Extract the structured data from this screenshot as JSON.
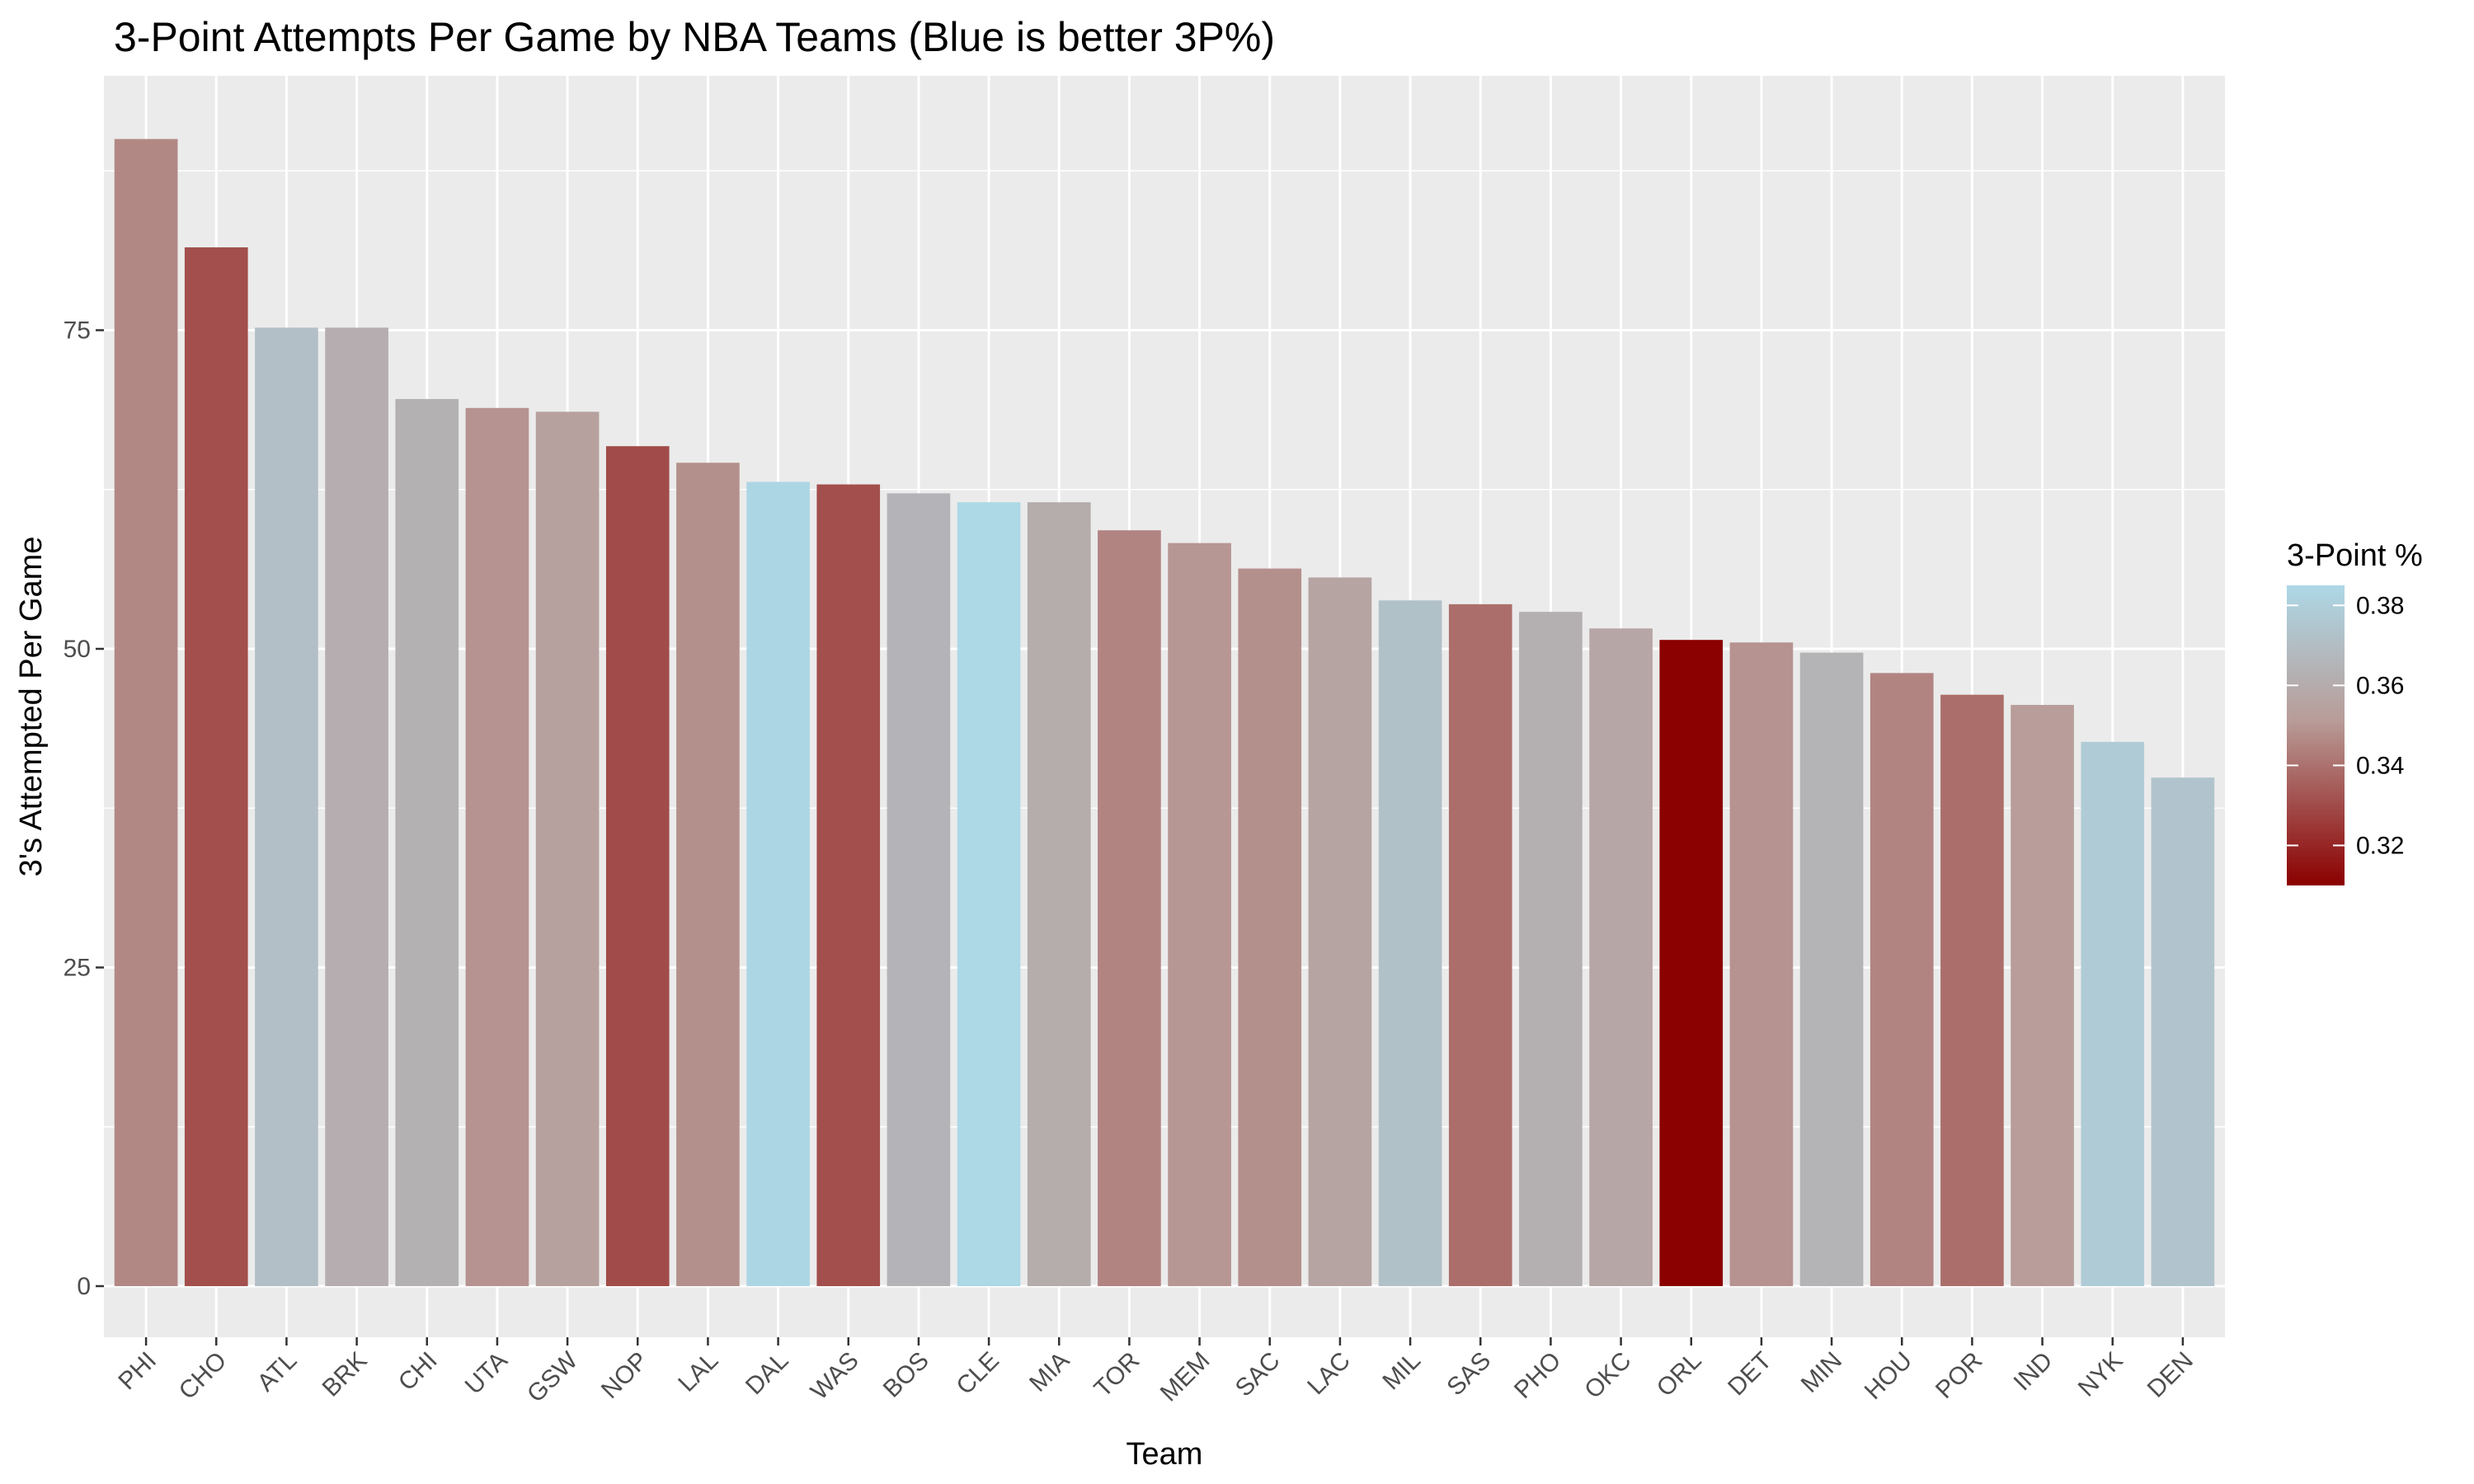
{
  "chart_data": {
    "type": "bar",
    "title": "3-Point Attempts Per Game by NBA Teams (Blue is better 3P%)",
    "xlabel": "Team",
    "ylabel": "3's Attempted Per Game",
    "ylim": [
      0,
      90
    ],
    "yticks": [
      0,
      25,
      50,
      75
    ],
    "grid": true,
    "legend": {
      "title": "3-Point %",
      "placement": "right",
      "range": [
        0.31,
        0.385
      ],
      "ticks": [
        0.32,
        0.34,
        0.36,
        0.38
      ],
      "tick_labels": [
        "0.32",
        "0.34",
        "0.36",
        "0.38"
      ],
      "low_color": "#8b0000",
      "mid_color": "#b89c98",
      "high_color": "#add8e6"
    },
    "categories": [
      "PHI",
      "CHO",
      "ATL",
      "BRK",
      "CHI",
      "UTA",
      "GSW",
      "NOP",
      "LAL",
      "DAL",
      "WAS",
      "BOS",
      "CLE",
      "MIA",
      "TOR",
      "MEM",
      "SAC",
      "LAC",
      "MIL",
      "SAS",
      "PHO",
      "OKC",
      "ORL",
      "DET",
      "MIN",
      "HOU",
      "POR",
      "IND",
      "NYK",
      "DEN"
    ],
    "values": [
      90.0,
      81.5,
      75.2,
      75.2,
      69.6,
      68.9,
      68.6,
      65.9,
      64.6,
      63.1,
      62.9,
      62.2,
      61.5,
      61.5,
      59.3,
      58.3,
      56.3,
      55.6,
      53.8,
      53.5,
      52.9,
      51.6,
      50.7,
      50.5,
      49.7,
      48.1,
      46.4,
      45.6,
      42.7,
      39.9
    ],
    "color_values": [
      0.346,
      0.331,
      0.371,
      0.361,
      0.363,
      0.349,
      0.354,
      0.33,
      0.348,
      0.384,
      0.331,
      0.365,
      0.385,
      0.36,
      0.345,
      0.35,
      0.348,
      0.356,
      0.372,
      0.339,
      0.362,
      0.357,
      0.31,
      0.349,
      0.364,
      0.345,
      0.339,
      0.352,
      0.378,
      0.374
    ]
  }
}
